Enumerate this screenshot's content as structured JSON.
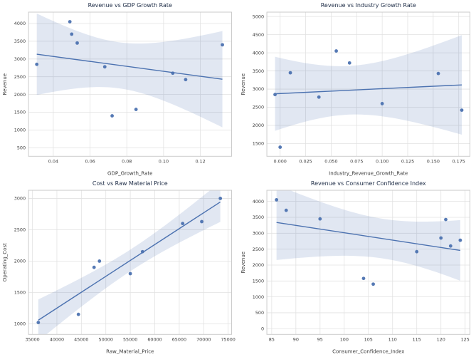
{
  "figure": {
    "background": "#ffffff",
    "style": {
      "accent": "#4c72b0",
      "band_opacity": 0.17,
      "grid": "#e2e2e2",
      "spine": "#cccccc",
      "tick_text": "#3a3a3a",
      "title_color": "#1c2b45"
    }
  },
  "chart_data": [
    {
      "type": "scatter",
      "title": "Revenue vs GDP Growth Rate",
      "xlabel": "GDP_Growth_Rate",
      "ylabel": "Revenue",
      "x": [
        0.031,
        0.049,
        0.05,
        0.053,
        0.068,
        0.072,
        0.085,
        0.105,
        0.112,
        0.132
      ],
      "y": [
        2850,
        4050,
        3700,
        3450,
        2780,
        1400,
        1580,
        2600,
        2420,
        3400
      ],
      "regression": true,
      "ci": 95,
      "xlim": [
        0.0265,
        0.137
      ],
      "ylim": [
        260,
        4320
      ],
      "xticks": [
        0.04,
        0.06,
        0.08,
        0.1,
        0.12
      ],
      "xtick_labels": [
        "0.04",
        "0.06",
        "0.08",
        "0.10",
        "0.12"
      ],
      "yticks": [
        500,
        1000,
        1500,
        2000,
        2500,
        3000,
        3500,
        4000
      ],
      "ytick_labels": [
        "500",
        "1000",
        "1500",
        "2000",
        "2500",
        "3000",
        "3500",
        "4000"
      ]
    },
    {
      "type": "scatter",
      "title": "Revenue vs Industry Growth Rate",
      "xlabel": "Industry_Revenue_Growth_Rate",
      "ylabel": "Revenue",
      "x": [
        -0.005,
        0.0,
        0.01,
        0.038,
        0.055,
        0.068,
        0.1,
        0.155,
        0.178
      ],
      "y": [
        2850,
        1400,
        3450,
        2780,
        4050,
        3720,
        2600,
        3430,
        2420
      ],
      "regression": true,
      "ci": 95,
      "xlim": [
        -0.013,
        0.186
      ],
      "ylim": [
        1150,
        5120
      ],
      "xticks": [
        0.0,
        0.025,
        0.05,
        0.075,
        0.1,
        0.125,
        0.15,
        0.175
      ],
      "xtick_labels": [
        "0.000",
        "0.025",
        "0.050",
        "0.075",
        "0.100",
        "0.125",
        "0.150",
        "0.175"
      ],
      "yticks": [
        1500,
        2000,
        2500,
        3000,
        3500,
        4000,
        4500,
        5000
      ],
      "ytick_labels": [
        "1500",
        "2000",
        "2500",
        "3000",
        "3500",
        "4000",
        "4500",
        "5000"
      ]
    },
    {
      "type": "scatter",
      "title": "Cost vs Raw Material Price",
      "xlabel": "Raw_Material_Price",
      "ylabel": "Operating_Cost",
      "x": [
        36200,
        44400,
        47600,
        48700,
        55000,
        57500,
        65700,
        69600,
        73400
      ],
      "y": [
        1020,
        1150,
        1900,
        2000,
        1800,
        2150,
        2600,
        2630,
        3000
      ],
      "regression": true,
      "ci": 95,
      "xlim": [
        34200,
        75700
      ],
      "ylim": [
        830,
        3130
      ],
      "xticks": [
        35000,
        40000,
        45000,
        50000,
        55000,
        60000,
        65000,
        70000,
        75000
      ],
      "xtick_labels": [
        "35000",
        "40000",
        "45000",
        "50000",
        "55000",
        "60000",
        "65000",
        "70000",
        "75000"
      ],
      "yticks": [
        1000,
        1500,
        2000,
        2500,
        3000
      ],
      "ytick_labels": [
        "1000",
        "1500",
        "2000",
        "2500",
        "3000"
      ]
    },
    {
      "type": "scatter",
      "title": "Revenue vs Consumer Confidence Index",
      "xlabel": "Consumer_Confidence_Index",
      "ylabel": "Revenue",
      "x": [
        86,
        88,
        95,
        104,
        106,
        115,
        120,
        121,
        122,
        124
      ],
      "y": [
        4050,
        3720,
        3450,
        1580,
        1400,
        2420,
        2850,
        3430,
        2600,
        2780
      ],
      "regression": true,
      "ci": 95,
      "xlim": [
        84,
        126
      ],
      "ylim": [
        -180,
        4350
      ],
      "xticks": [
        85,
        90,
        95,
        100,
        105,
        110,
        115,
        120,
        125
      ],
      "xtick_labels": [
        "85",
        "90",
        "95",
        "100",
        "105",
        "110",
        "115",
        "120",
        "125"
      ],
      "yticks": [
        0,
        500,
        1000,
        1500,
        2000,
        2500,
        3000,
        3500,
        4000
      ],
      "ytick_labels": [
        "0",
        "500",
        "1000",
        "1500",
        "2000",
        "2500",
        "3000",
        "3500",
        "4000"
      ]
    }
  ]
}
